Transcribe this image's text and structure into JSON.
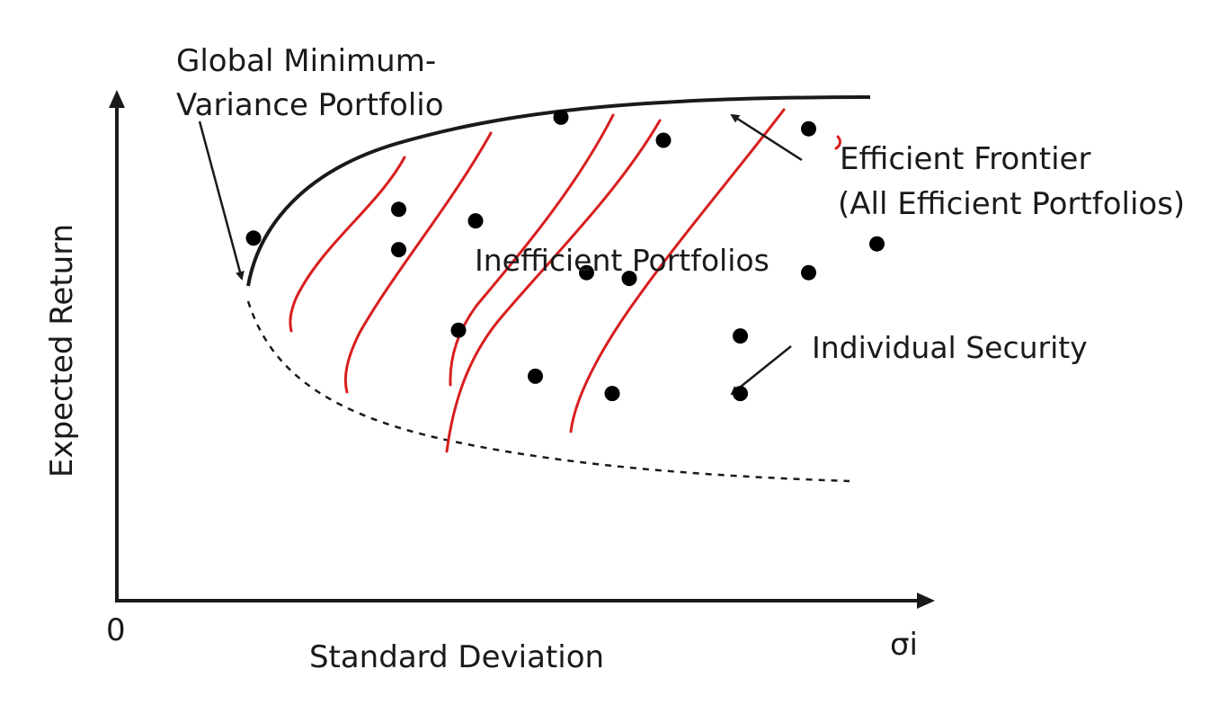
{
  "chart_data": {
    "type": "scatter",
    "title": "",
    "xlabel": "Standard Deviation",
    "ylabel": "Expected Return",
    "origin_label": "0",
    "x_end_label": "σi",
    "grid": false,
    "legend": "none",
    "annotations": {
      "gmv_line1": "Global Minimum-",
      "gmv_line2": "Variance Portfolio",
      "frontier_line1": "Efficient Frontier",
      "frontier_line2": "(All Efficient Portfolios)",
      "inefficient": "Inefficient Portfolios",
      "security": "Individual Security"
    },
    "colors": {
      "axis": "#1a1a1a",
      "frontier": "#1a1a1a",
      "dots": "#000000",
      "handwriting": "#d81e1e"
    },
    "securities": [
      [
        0.52,
        0.84
      ],
      [
        0.64,
        0.8
      ],
      [
        0.81,
        0.82
      ],
      [
        0.33,
        0.68
      ],
      [
        0.42,
        0.66
      ],
      [
        0.33,
        0.61
      ],
      [
        0.55,
        0.57
      ],
      [
        0.6,
        0.56
      ],
      [
        0.89,
        0.62
      ],
      [
        0.81,
        0.57
      ],
      [
        0.4,
        0.47
      ],
      [
        0.73,
        0.46
      ],
      [
        0.49,
        0.39
      ],
      [
        0.58,
        0.36
      ],
      [
        0.73,
        0.36
      ]
    ],
    "gmv_point": [
      0.16,
      0.63
    ]
  }
}
